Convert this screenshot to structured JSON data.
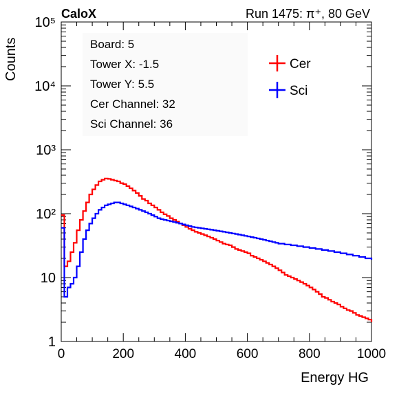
{
  "header": {
    "experiment": "CaloX",
    "run_info": "Run 1475:   π⁺, 80 GeV"
  },
  "info_box": {
    "lines": [
      "Board: 5",
      "Tower X: -1.5",
      "Tower Y: 5.5",
      "Cer Channel: 32",
      "Sci Channel: 36"
    ]
  },
  "chart_data": {
    "type": "line",
    "xlabel": "Energy HG",
    "ylabel": "Counts",
    "xlim": [
      0,
      1000
    ],
    "ylim": [
      1,
      100000
    ],
    "yscale": "log",
    "x_ticks": [
      "0",
      "200",
      "400",
      "600",
      "800",
      "1000"
    ],
    "y_ticks": [
      {
        "value": 1,
        "label": "1"
      },
      {
        "value": 10,
        "label": "10"
      },
      {
        "value": 100,
        "label": "10²"
      },
      {
        "value": 1000,
        "label": "10³"
      },
      {
        "value": 10000,
        "label": "10⁴"
      },
      {
        "value": 100000,
        "label": "10⁵"
      }
    ],
    "legend_position": "top-right",
    "x": [
      0,
      10,
      20,
      30,
      40,
      50,
      60,
      70,
      80,
      90,
      100,
      110,
      120,
      130,
      140,
      150,
      160,
      170,
      180,
      190,
      200,
      210,
      220,
      230,
      240,
      250,
      260,
      270,
      280,
      290,
      300,
      310,
      320,
      330,
      340,
      350,
      360,
      370,
      380,
      390,
      400,
      410,
      420,
      430,
      440,
      450,
      460,
      470,
      480,
      490,
      500,
      510,
      520,
      530,
      540,
      550,
      560,
      570,
      580,
      590,
      600,
      610,
      620,
      630,
      640,
      650,
      660,
      670,
      680,
      690,
      700,
      710,
      720,
      730,
      740,
      750,
      760,
      770,
      780,
      790,
      800,
      810,
      820,
      830,
      840,
      850,
      860,
      870,
      880,
      890,
      900,
      910,
      920,
      930,
      940,
      950,
      960,
      970,
      980,
      990,
      1000
    ],
    "series": [
      {
        "name": "Cer",
        "color": "#ff0000",
        "values": [
          95,
          15,
          18,
          25,
          35,
          55,
          80,
          110,
          150,
          200,
          240,
          280,
          320,
          340,
          355,
          350,
          340,
          330,
          320,
          300,
          290,
          270,
          250,
          230,
          210,
          190,
          170,
          160,
          145,
          135,
          125,
          115,
          105,
          98,
          92,
          85,
          80,
          75,
          70,
          66,
          62,
          58,
          55,
          52,
          50,
          48,
          46,
          44,
          42,
          40,
          38,
          36,
          34,
          33,
          32,
          30,
          28,
          27,
          26,
          25,
          24,
          22,
          21,
          20,
          19,
          18,
          17,
          16,
          15,
          14,
          13,
          12,
          11,
          10.5,
          10,
          9.5,
          9,
          8.5,
          8,
          7.5,
          7,
          6.5,
          6,
          5.5,
          5,
          4.8,
          4.5,
          4.2,
          4,
          3.8,
          3.5,
          3.3,
          3.1,
          3,
          2.8,
          2.6,
          2.5,
          2.4,
          2.3,
          2.2,
          2
        ]
      },
      {
        "name": "Sci",
        "color": "#0000ff",
        "values": [
          60,
          5,
          7,
          8,
          10,
          15,
          25,
          40,
          55,
          70,
          85,
          100,
          115,
          125,
          135,
          140,
          145,
          150,
          150,
          145,
          140,
          135,
          130,
          125,
          120,
          115,
          110,
          105,
          100,
          95,
          90,
          85,
          82,
          80,
          78,
          76,
          74,
          72,
          70,
          68,
          66,
          64,
          62,
          61,
          60,
          59,
          58,
          57,
          56,
          55,
          54,
          53,
          52,
          51,
          50,
          49,
          48,
          47,
          46,
          45,
          44,
          43,
          42,
          41,
          40,
          39,
          38,
          37,
          36,
          35,
          34,
          34,
          33,
          33,
          32,
          32,
          31,
          31,
          30,
          30,
          29,
          29,
          28,
          28,
          27,
          27,
          26,
          26,
          25,
          25,
          24,
          24,
          23,
          23,
          22,
          22,
          21,
          21,
          20,
          20,
          19
        ]
      }
    ]
  }
}
